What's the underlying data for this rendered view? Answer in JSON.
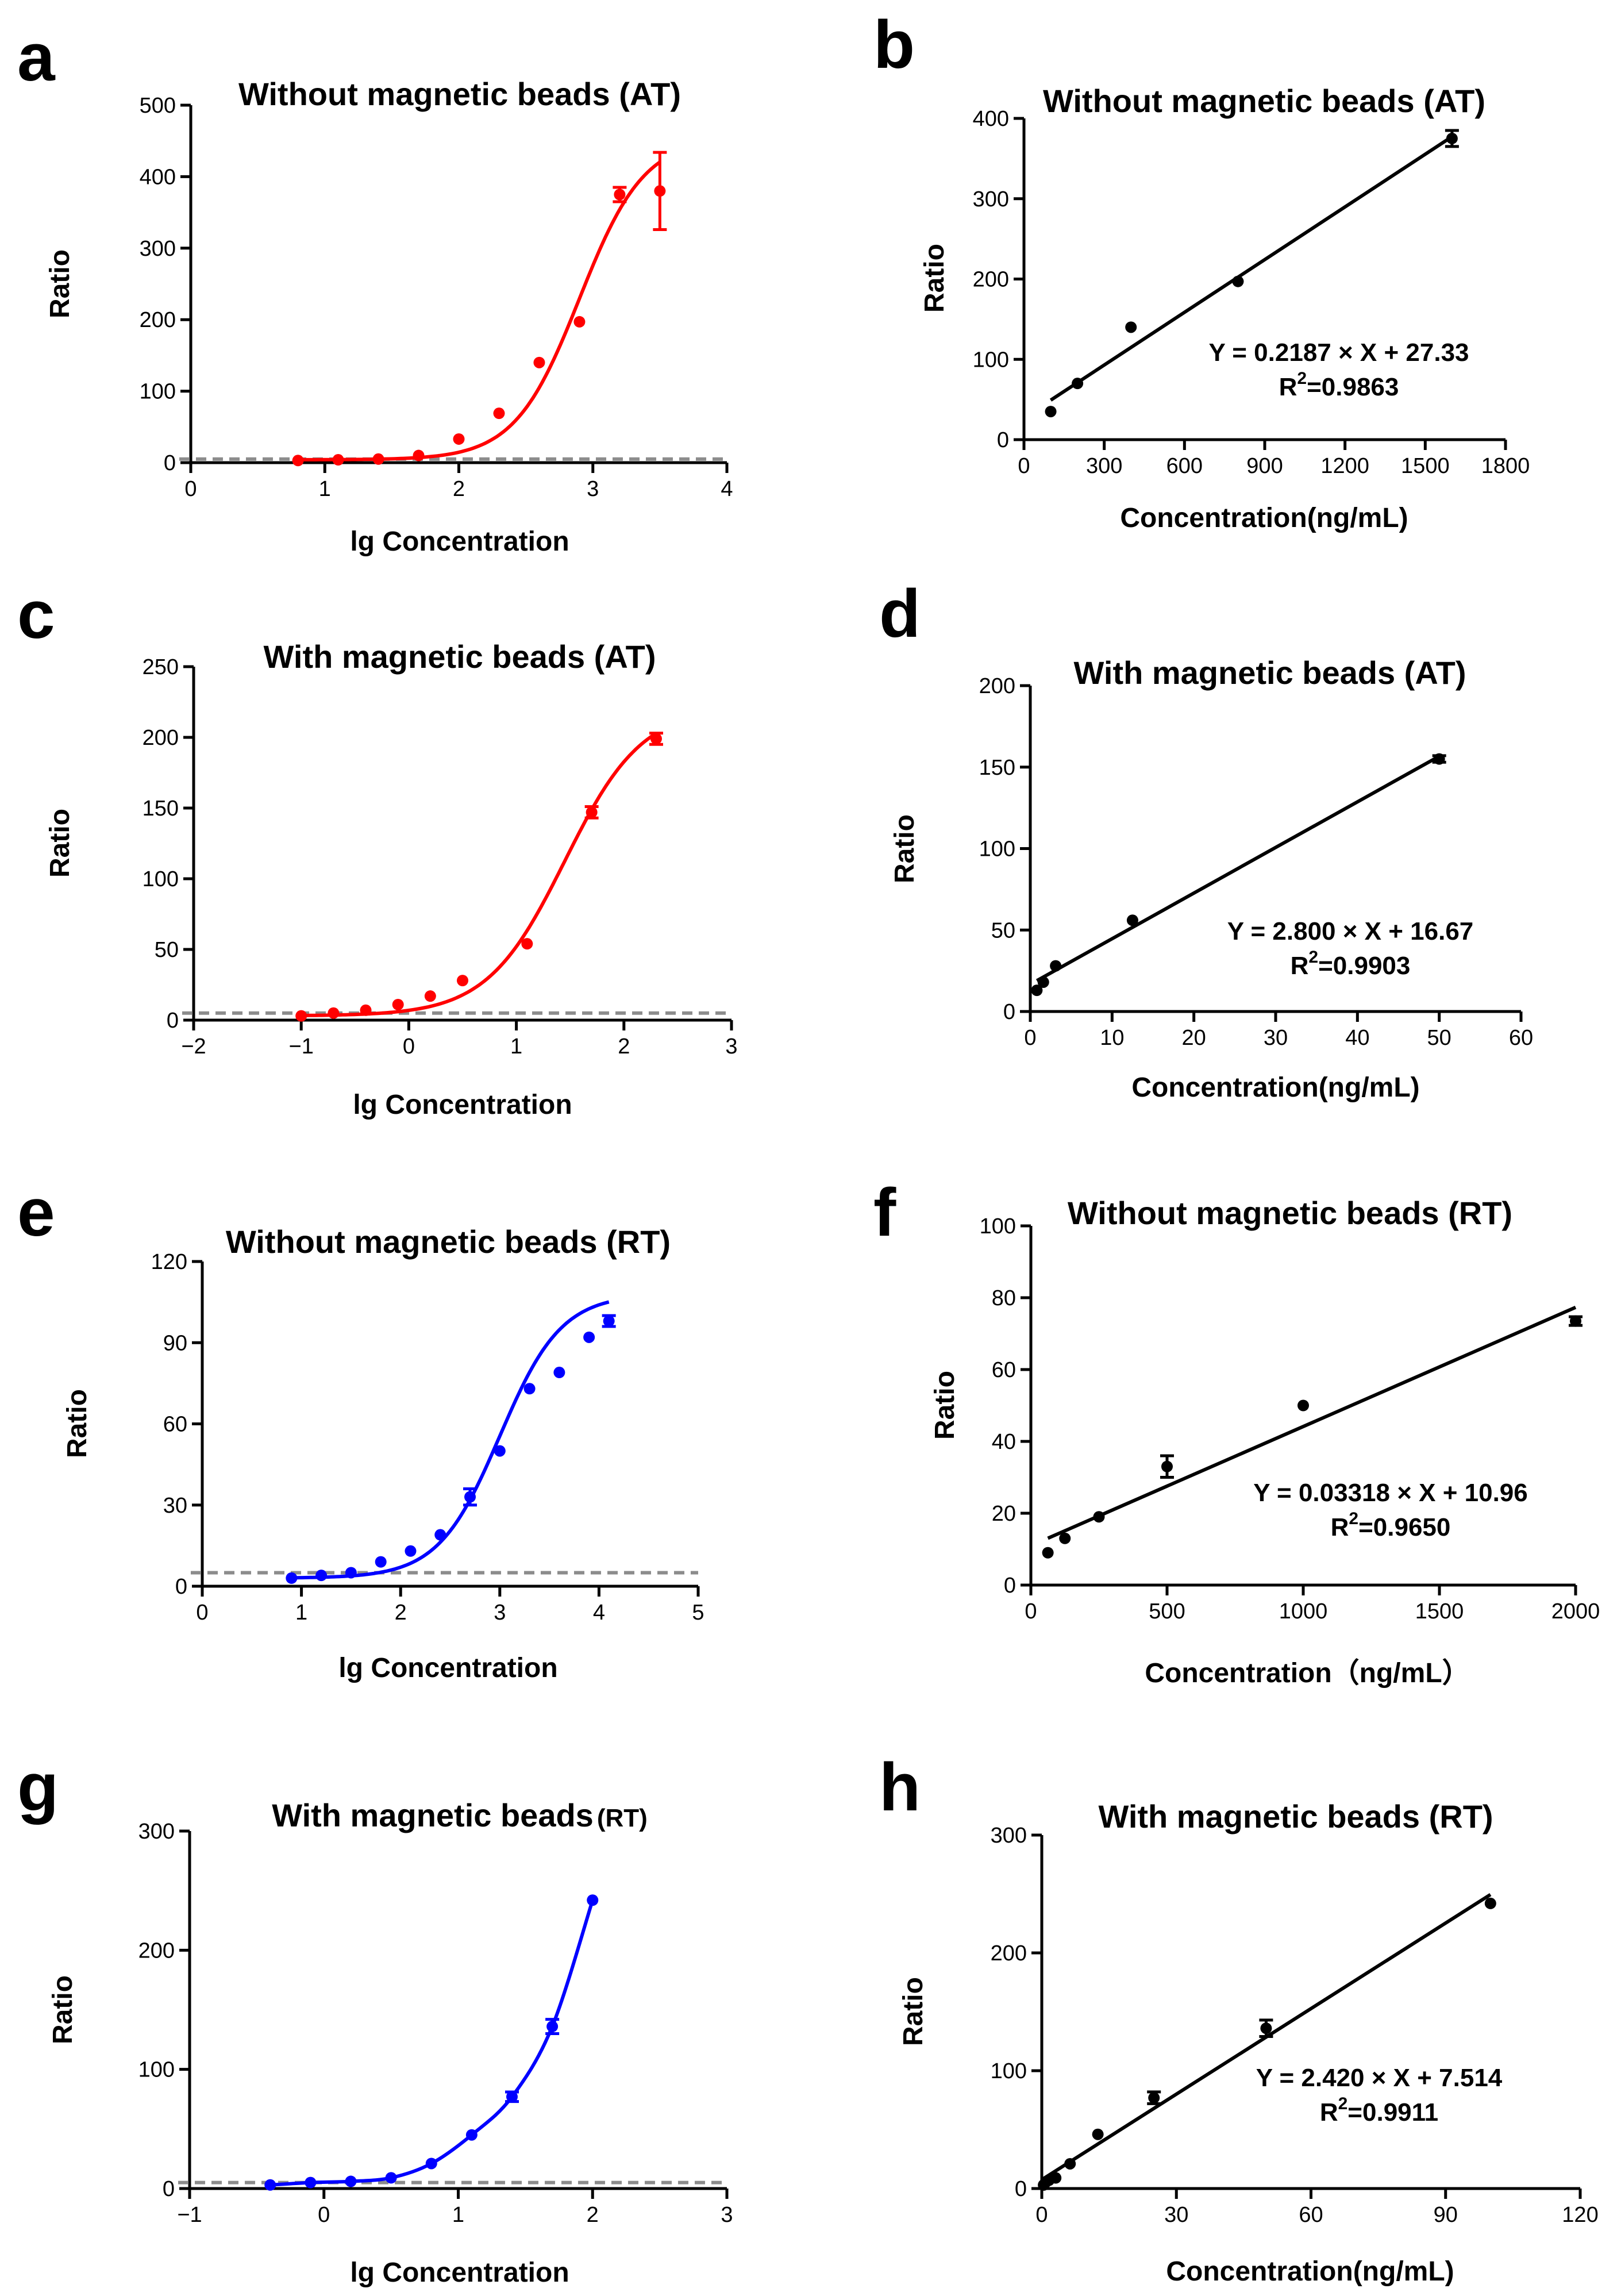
{
  "figure": {
    "panels": [
      "a",
      "b",
      "c",
      "d",
      "e",
      "f",
      "g",
      "h"
    ]
  },
  "chart_data": [
    {
      "panel": "a",
      "type": "scatter",
      "title": "Without magnetic beads (AT)",
      "xlabel": "lg Concentration",
      "ylabel": "Ratio",
      "xlim": [
        0,
        4
      ],
      "ylim": [
        0,
        500
      ],
      "xticks": [
        0,
        1,
        2,
        3,
        4
      ],
      "yticks": [
        0,
        100,
        200,
        300,
        400,
        500
      ],
      "xtick_labels": [
        "0",
        "1",
        "2",
        "3",
        "4"
      ],
      "ytick_labels": [
        "0",
        "100",
        "200",
        "300",
        "400",
        "500"
      ],
      "color": "#ff0000",
      "fit": "sigmoid",
      "sigmoid": {
        "bottom": 4,
        "top": 455,
        "ec50": 2.9,
        "hill": 1.8
      },
      "dashed_line": 5,
      "series": [
        {
          "name": "data",
          "x": [
            0.8,
            1.1,
            1.4,
            1.7,
            2.0,
            2.3,
            2.6,
            2.9,
            3.2,
            3.5
          ],
          "y": [
            3,
            4,
            5,
            10,
            33,
            69,
            140,
            197,
            375,
            380
          ],
          "err": [
            0,
            0,
            0,
            0,
            0,
            0,
            0,
            0,
            10,
            54
          ]
        }
      ]
    },
    {
      "panel": "b",
      "type": "scatter",
      "title": "Without magnetic beads (AT)",
      "xlabel": "Concentration(ng/mL)",
      "ylabel": "Ratio",
      "xlim": [
        0,
        1800
      ],
      "ylim": [
        0,
        400
      ],
      "xticks": [
        0,
        300,
        600,
        900,
        1200,
        1500,
        1800
      ],
      "yticks": [
        0,
        100,
        200,
        300,
        400
      ],
      "xtick_labels": [
        "0",
        "300",
        "600",
        "900",
        "1200",
        "1500",
        "1800"
      ],
      "ytick_labels": [
        "0",
        "100",
        "200",
        "300",
        "400"
      ],
      "color": "#000000",
      "fit": "linear",
      "line": {
        "slope": 0.2187,
        "intercept": 27.33,
        "x_from": 100,
        "x_to": 1600
      },
      "equation": "Y = 0.2187 × X + 27.33",
      "r2_value": "=0.9863",
      "series": [
        {
          "name": "data",
          "x": [
            100,
            200,
            400,
            800,
            1600
          ],
          "y": [
            35,
            70,
            140,
            197,
            375
          ],
          "err": [
            0,
            0,
            0,
            0,
            10
          ]
        }
      ]
    },
    {
      "panel": "c",
      "type": "scatter",
      "title": "With magnetic beads (AT)",
      "xlabel": "lg Concentration",
      "ylabel": "Ratio",
      "xlim": [
        -2,
        3
      ],
      "ylim": [
        0,
        250
      ],
      "xticks": [
        -2,
        -1,
        0,
        1,
        2,
        3
      ],
      "yticks": [
        0,
        50,
        100,
        150,
        200,
        250
      ],
      "xtick_labels": [
        "−2",
        "−1",
        "0",
        "1",
        "2",
        "3"
      ],
      "ytick_labels": [
        "0",
        "50",
        "100",
        "150",
        "200",
        "250"
      ],
      "color": "#ff0000",
      "fit": "sigmoid",
      "sigmoid": {
        "bottom": 3,
        "top": 222,
        "ec50": 1.45,
        "hill": 1.2
      },
      "dashed_line": 5,
      "series": [
        {
          "name": "data",
          "x": [
            -1.0,
            -0.7,
            -0.4,
            -0.1,
            0.2,
            0.5,
            1.1,
            1.7,
            2.3
          ],
          "y": [
            3,
            5,
            7,
            11,
            17,
            28,
            54,
            147,
            199
          ],
          "err": [
            0,
            0,
            0,
            0,
            0,
            0,
            0,
            4,
            4
          ]
        }
      ]
    },
    {
      "panel": "d",
      "type": "scatter",
      "title": "With magnetic beads (AT)",
      "xlabel": "Concentration(ng/mL)",
      "ylabel": "Ratio",
      "xlim": [
        0,
        60
      ],
      "ylim": [
        0,
        200
      ],
      "xticks": [
        0,
        10,
        20,
        30,
        40,
        50,
        60
      ],
      "yticks": [
        0,
        50,
        100,
        150,
        200
      ],
      "xtick_labels": [
        "0",
        "10",
        "20",
        "30",
        "40",
        "50",
        "60"
      ],
      "ytick_labels": [
        "0",
        "50",
        "100",
        "150",
        "200"
      ],
      "color": "#000000",
      "fit": "linear",
      "line": {
        "slope": 2.8,
        "intercept": 16.67,
        "x_from": 0.8,
        "x_to": 50
      },
      "equation": "Y = 2.800 × X + 16.67",
      "r2_value": "=0.9903",
      "series": [
        {
          "name": "data",
          "x": [
            0.8,
            1.6,
            3.1,
            12.5,
            50
          ],
          "y": [
            13,
            18,
            28,
            56,
            155
          ],
          "err": [
            0,
            0,
            0,
            0,
            2
          ]
        }
      ]
    },
    {
      "panel": "e",
      "type": "scatter",
      "title": "Without magnetic beads (RT)",
      "xlabel": "lg Concentration",
      "ylabel": "Ratio",
      "xlim": [
        0,
        5
      ],
      "ylim": [
        0,
        120
      ],
      "xticks": [
        0,
        1,
        2,
        3,
        4,
        5
      ],
      "yticks": [
        0,
        30,
        60,
        90,
        120
      ],
      "xtick_labels": [
        "0",
        "1",
        "2",
        "3",
        "4",
        "5"
      ],
      "ytick_labels": [
        "0",
        "30",
        "60",
        "90",
        "120"
      ],
      "color": "#0000ff",
      "fit": "sigmoid",
      "sigmoid": {
        "bottom": 3,
        "top": 108,
        "ec50": 3.0,
        "hill": 1.4
      },
      "dashed_line": 5,
      "series": [
        {
          "name": "data",
          "x": [
            0.9,
            1.2,
            1.5,
            1.8,
            2.1,
            2.4,
            2.7,
            3.0,
            3.3,
            3.6,
            3.9,
            4.1
          ],
          "y": [
            3,
            4,
            5,
            9,
            13,
            19,
            33,
            50,
            73,
            79,
            92,
            98
          ],
          "err": [
            0,
            0,
            0,
            0,
            0,
            0,
            3,
            0,
            0,
            0,
            0,
            2
          ]
        }
      ]
    },
    {
      "panel": "f",
      "type": "scatter",
      "title": "Without magnetic beads (RT)",
      "xlabel": "Concentration（ng/mL）",
      "ylabel": "Ratio",
      "xlim": [
        0,
        2000
      ],
      "ylim": [
        0,
        100
      ],
      "xticks": [
        0,
        500,
        1000,
        1500,
        2000
      ],
      "yticks": [
        0,
        20,
        40,
        60,
        80,
        100
      ],
      "xtick_labels": [
        "0",
        "500",
        "1000",
        "1500",
        "2000"
      ],
      "ytick_labels": [
        "0",
        "20",
        "40",
        "60",
        "80",
        "100"
      ],
      "color": "#000000",
      "fit": "linear",
      "line": {
        "slope": 0.03318,
        "intercept": 10.96,
        "x_from": 62.5,
        "x_to": 2000
      },
      "equation": "Y = 0.03318 × X + 10.96",
      "r2_value": "=0.9650",
      "series": [
        {
          "name": "data",
          "x": [
            62.5,
            125,
            250,
            500,
            1000,
            2000
          ],
          "y": [
            9,
            13,
            19,
            33,
            50,
            73.5
          ],
          "err": [
            0,
            0,
            0,
            3,
            0,
            1.2
          ]
        }
      ]
    },
    {
      "panel": "g",
      "type": "scatter",
      "title": "With magnetic beads",
      "title_suffix": "(RT)",
      "xlabel": "lg Concentration",
      "ylabel": "Ratio",
      "xlim": [
        -1,
        3
      ],
      "ylim": [
        0,
        300
      ],
      "xticks": [
        -1,
        0,
        1,
        2,
        3
      ],
      "yticks": [
        0,
        100,
        200,
        300
      ],
      "xtick_labels": [
        "−1",
        "0",
        "1",
        "2",
        "3"
      ],
      "ytick_labels": [
        "0",
        "100",
        "200",
        "300"
      ],
      "color": "#0000ff",
      "fit": "smooth",
      "dashed_line": 5,
      "series": [
        {
          "name": "data",
          "x": [
            -0.4,
            -0.1,
            0.2,
            0.5,
            0.8,
            1.1,
            1.4,
            1.7,
            2.0
          ],
          "y": [
            3,
            5,
            6,
            9,
            21,
            45,
            77,
            136,
            242
          ],
          "err": [
            0,
            0,
            0,
            0,
            0,
            0,
            4,
            6,
            0
          ]
        }
      ]
    },
    {
      "panel": "h",
      "type": "scatter",
      "title": "With magnetic beads (RT)",
      "xlabel": "Concentration(ng/mL)",
      "ylabel": "Ratio",
      "xlim": [
        0,
        120
      ],
      "ylim": [
        0,
        300
      ],
      "xticks": [
        0,
        30,
        60,
        90,
        120
      ],
      "yticks": [
        0,
        100,
        200,
        300
      ],
      "xtick_labels": [
        "0",
        "30",
        "60",
        "90",
        "120"
      ],
      "ytick_labels": [
        "0",
        "100",
        "200",
        "300"
      ],
      "color": "#000000",
      "fit": "linear",
      "line": {
        "slope": 2.42,
        "intercept": 7.514,
        "x_from": 0.4,
        "x_to": 100
      },
      "equation": "Y = 2.420 × X + 7.514",
      "r2_value": "=0.9911",
      "series": [
        {
          "name": "data",
          "x": [
            0.4,
            0.8,
            1.6,
            3.1,
            6.3,
            12.5,
            25,
            50,
            100
          ],
          "y": [
            3,
            5,
            7,
            9,
            21,
            46,
            77,
            136,
            242
          ],
          "err": [
            0,
            0,
            0,
            0,
            0,
            0,
            5,
            7,
            0
          ]
        }
      ]
    }
  ]
}
